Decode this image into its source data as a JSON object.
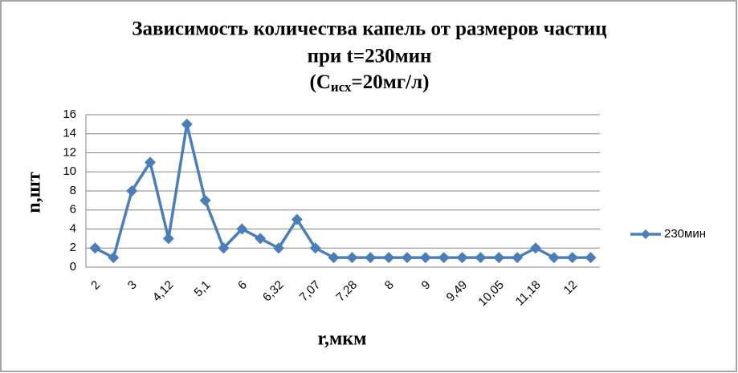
{
  "chart_data": {
    "type": "line",
    "title": [
      "Зависимость количества капель от размеров частиц",
      "при t=230мин",
      [
        "(C",
        "исх",
        "=20мг/л)"
      ]
    ],
    "x_label": "r,мкм",
    "y_label": "n,шт",
    "categories": [
      "2",
      null,
      "3",
      null,
      "4,12",
      null,
      "5,1",
      null,
      "6",
      null,
      "6,32",
      null,
      "7,07",
      null,
      "7,28",
      null,
      "8",
      null,
      "9",
      null,
      "9,49",
      null,
      "10,05",
      null,
      "11,18",
      null,
      "12",
      null
    ],
    "series": [
      {
        "name": "230мин",
        "color": "#4a7ebb",
        "values": [
          2,
          1,
          8,
          11,
          3,
          15,
          7,
          2,
          4,
          3,
          2,
          5,
          2,
          1,
          1,
          1,
          1,
          1,
          1,
          1,
          1,
          1,
          1,
          1,
          2,
          1,
          1,
          1
        ]
      }
    ],
    "ylim": [
      0,
      16
    ],
    "yticks": [
      0,
      2,
      4,
      6,
      8,
      10,
      12,
      14,
      16
    ],
    "grid": true,
    "legend": "right"
  }
}
